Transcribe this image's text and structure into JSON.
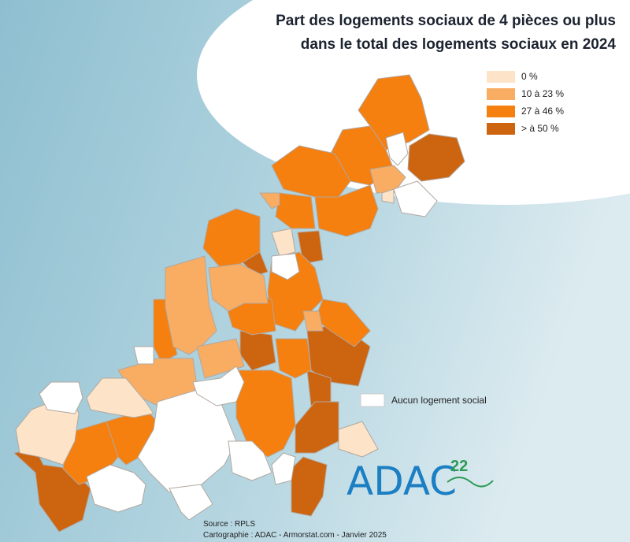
{
  "title": [
    "Part des logements sociaux de 4 pièces ou plus",
    "dans le total des logements sociaux en 2024"
  ],
  "legend": [
    {
      "label": "0 %",
      "color": "#fde3c8"
    },
    {
      "label": "10 à 23 %",
      "color": "#f9ad63"
    },
    {
      "label": "27 à 46 %",
      "color": "#f57f0f"
    },
    {
      "label": "> à 50 %",
      "color": "#cd6410"
    }
  ],
  "no_data": {
    "label": "Aucun logement social",
    "color": "#ffffff"
  },
  "source": "Source : RPLS",
  "credit": "Cartographie : ADAC - Armorstat.com - Janvier 2025",
  "logo": {
    "text": "ADAC",
    "number": "22"
  }
}
